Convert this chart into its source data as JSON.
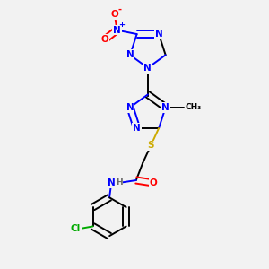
{
  "bg_color": "#f2f2f2",
  "atom_colors": {
    "C": "#000000",
    "N": "#0000ff",
    "O": "#ff0000",
    "S": "#ccaa00",
    "H": "#666666",
    "Cl": "#00aa00"
  },
  "bond_lw": 1.4,
  "font_size": 7.5
}
